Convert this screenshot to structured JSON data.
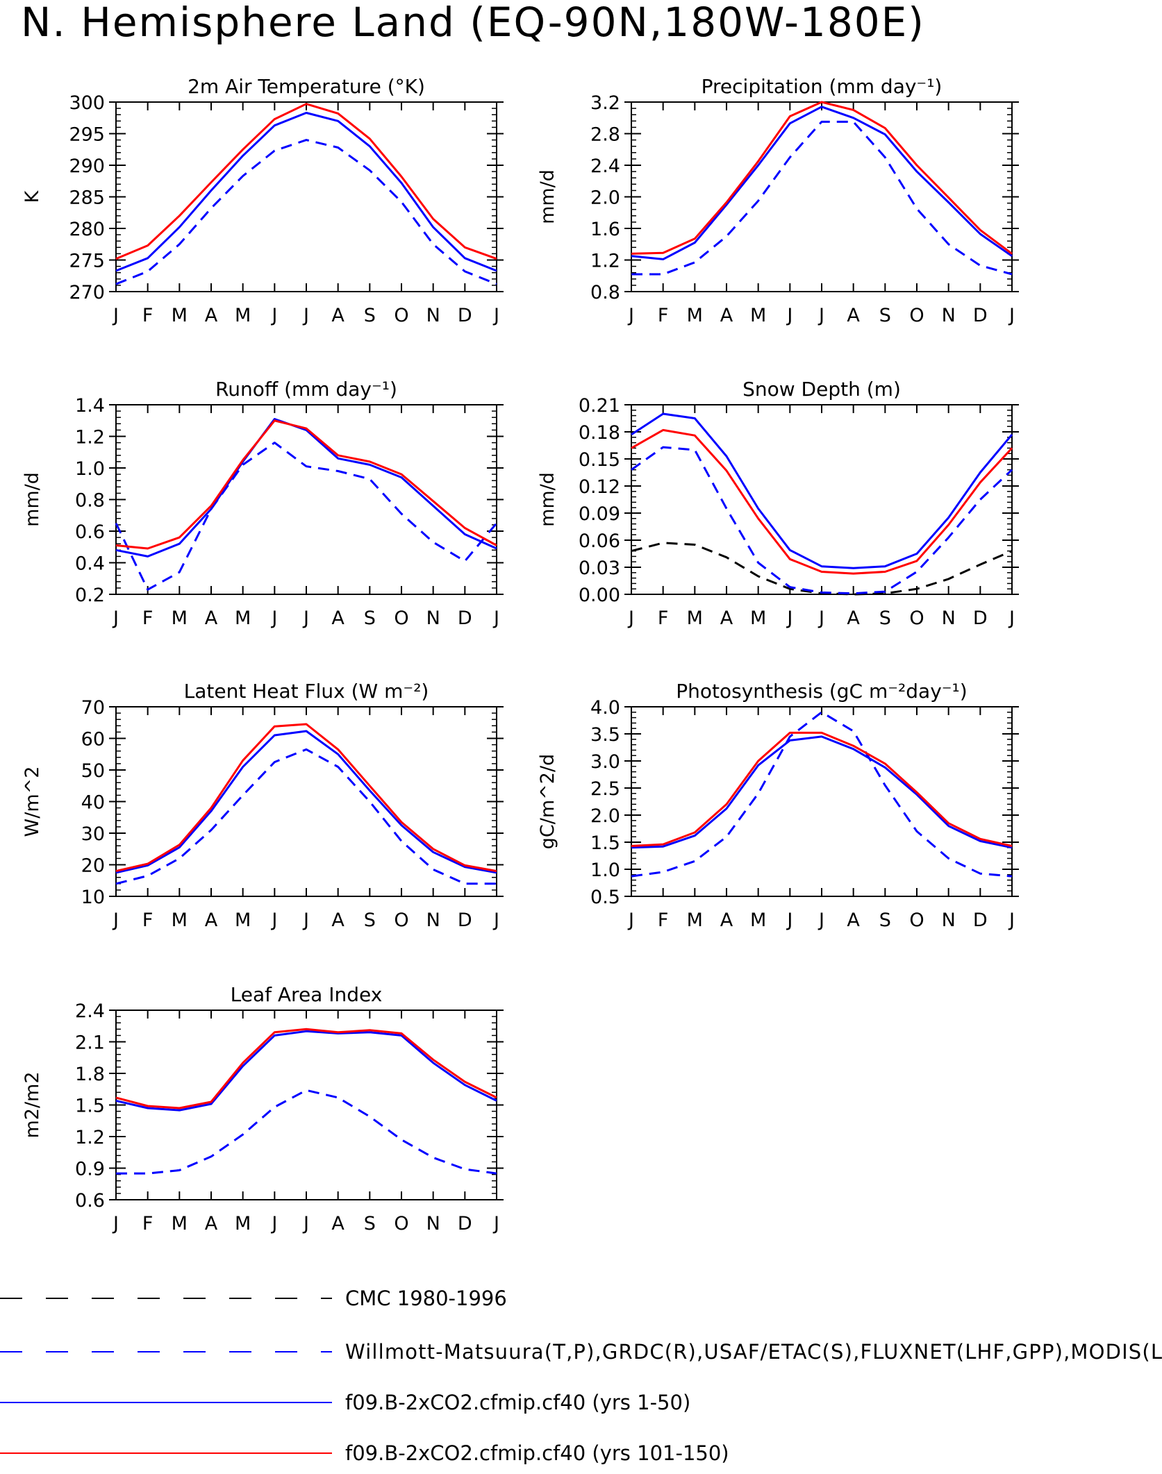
{
  "page_title": "N. Hemisphere Land (EQ-90N,180W-180E)",
  "colors": {
    "obs_snow": "#000000",
    "obs": "#0000ff",
    "model_1": "#0000ff",
    "model_2": "#ff0000"
  },
  "legend": [
    {
      "label": "CMC 1980-1996",
      "color": "#000000",
      "dashed": true
    },
    {
      "label": "Willmott-Matsuura(T,P),GRDC(R),USAF/ETAC(S),FLUXNET(LHF,GPP),MODIS(L",
      "color": "#0000ff",
      "dashed": true
    },
    {
      "label": "f09.B-2xCO2.cfmip.cf40 (yrs 1-50)",
      "color": "#0000ff",
      "dashed": false
    },
    {
      "label": "f09.B-2xCO2.cfmip.cf40 (yrs 101-150)",
      "color": "#ff0000",
      "dashed": false
    }
  ],
  "chart_data": [
    {
      "type": "line",
      "title": "2m Air Temperature (°K)",
      "ylabel": "K",
      "categories": [
        "J",
        "F",
        "M",
        "A",
        "M",
        "J",
        "J",
        "A",
        "S",
        "O",
        "N",
        "D",
        "J"
      ],
      "ylim": [
        270,
        300
      ],
      "yticks": [
        "270",
        "275",
        "280",
        "285",
        "290",
        "295",
        "300"
      ],
      "series": [
        {
          "color": "#0000ff",
          "dashed": true,
          "values": [
            271.2,
            273.2,
            277.5,
            283.2,
            288.3,
            292.3,
            294.0,
            292.8,
            289.2,
            284.2,
            277.5,
            273.2,
            271.2
          ]
        },
        {
          "color": "#0000ff",
          "dashed": false,
          "values": [
            273.3,
            275.3,
            280.2,
            286.0,
            291.5,
            296.3,
            298.3,
            297.0,
            293.0,
            287.2,
            280.2,
            275.3,
            273.3
          ]
        },
        {
          "color": "#ff0000",
          "dashed": false,
          "values": [
            275.2,
            277.3,
            282.0,
            287.3,
            292.5,
            297.3,
            299.7,
            298.2,
            294.2,
            288.2,
            281.5,
            277.0,
            275.2
          ]
        }
      ]
    },
    {
      "type": "line",
      "title": "Precipitation (mm day⁻¹)",
      "ylabel": "mm/d",
      "categories": [
        "J",
        "F",
        "M",
        "A",
        "M",
        "J",
        "J",
        "A",
        "S",
        "O",
        "N",
        "D",
        "J"
      ],
      "ylim": [
        0.8,
        3.2
      ],
      "yticks": [
        "0.8",
        "1.2",
        "1.6",
        "2.0",
        "2.4",
        "2.8",
        "3.2"
      ],
      "series": [
        {
          "color": "#0000ff",
          "dashed": true,
          "values": [
            1.02,
            1.02,
            1.17,
            1.5,
            1.95,
            2.5,
            2.95,
            2.95,
            2.5,
            1.85,
            1.4,
            1.13,
            1.02
          ]
        },
        {
          "color": "#0000ff",
          "dashed": false,
          "values": [
            1.25,
            1.21,
            1.42,
            1.9,
            2.4,
            2.93,
            3.14,
            3.0,
            2.79,
            2.32,
            1.93,
            1.53,
            1.25
          ]
        },
        {
          "color": "#ff0000",
          "dashed": false,
          "values": [
            1.28,
            1.29,
            1.47,
            1.93,
            2.45,
            3.02,
            3.2,
            3.1,
            2.87,
            2.4,
            1.99,
            1.58,
            1.28
          ]
        }
      ]
    },
    {
      "type": "line",
      "title": "Runoff (mm day⁻¹)",
      "ylabel": "mm/d",
      "categories": [
        "J",
        "F",
        "M",
        "A",
        "M",
        "J",
        "J",
        "A",
        "S",
        "O",
        "N",
        "D",
        "J"
      ],
      "ylim": [
        0.2,
        1.4
      ],
      "yticks": [
        "0.2",
        "0.4",
        "0.6",
        "0.8",
        "1.0",
        "1.2",
        "1.4"
      ],
      "series": [
        {
          "color": "#0000ff",
          "dashed": true,
          "values": [
            0.65,
            0.23,
            0.34,
            0.74,
            1.02,
            1.16,
            1.01,
            0.98,
            0.93,
            0.71,
            0.53,
            0.41,
            0.65
          ]
        },
        {
          "color": "#0000ff",
          "dashed": false,
          "values": [
            0.48,
            0.44,
            0.52,
            0.74,
            1.04,
            1.31,
            1.24,
            1.06,
            1.02,
            0.94,
            0.76,
            0.58,
            0.49
          ]
        },
        {
          "color": "#ff0000",
          "dashed": false,
          "values": [
            0.51,
            0.49,
            0.56,
            0.76,
            1.05,
            1.3,
            1.25,
            1.08,
            1.04,
            0.96,
            0.79,
            0.62,
            0.51
          ]
        }
      ]
    },
    {
      "type": "line",
      "title": "Snow Depth (m)",
      "ylabel": "mm/d",
      "categories": [
        "J",
        "F",
        "M",
        "A",
        "M",
        "J",
        "J",
        "A",
        "S",
        "O",
        "N",
        "D",
        "J"
      ],
      "ylim": [
        0,
        0.21
      ],
      "yticks": [
        "0.00",
        "0.03",
        "0.06",
        "0.09",
        "0.12",
        "0.15",
        "0.18",
        "0.21"
      ],
      "series": [
        {
          "color": "#000000",
          "dashed": true,
          "values": [
            0.048,
            0.057,
            0.055,
            0.041,
            0.02,
            0.006,
            0.001,
            0.0,
            0.001,
            0.006,
            0.017,
            0.033,
            0.048
          ]
        },
        {
          "color": "#0000ff",
          "dashed": true,
          "values": [
            0.138,
            0.163,
            0.16,
            0.095,
            0.035,
            0.008,
            0.002,
            0.001,
            0.003,
            0.025,
            0.063,
            0.105,
            0.138
          ]
        },
        {
          "color": "#0000ff",
          "dashed": false,
          "values": [
            0.177,
            0.2,
            0.195,
            0.153,
            0.095,
            0.049,
            0.031,
            0.029,
            0.031,
            0.045,
            0.085,
            0.135,
            0.177
          ]
        },
        {
          "color": "#ff0000",
          "dashed": false,
          "values": [
            0.162,
            0.182,
            0.176,
            0.137,
            0.084,
            0.039,
            0.025,
            0.023,
            0.025,
            0.037,
            0.077,
            0.124,
            0.162
          ]
        }
      ]
    },
    {
      "type": "line",
      "title": "Latent Heat Flux (W m⁻²)",
      "ylabel": "W/m^2",
      "categories": [
        "J",
        "F",
        "M",
        "A",
        "M",
        "J",
        "J",
        "A",
        "S",
        "O",
        "N",
        "D",
        "J"
      ],
      "ylim": [
        10,
        70
      ],
      "yticks": [
        "10",
        "20",
        "30",
        "40",
        "50",
        "60",
        "70"
      ],
      "series": [
        {
          "color": "#0000ff",
          "dashed": true,
          "values": [
            14,
            16.5,
            22,
            31,
            42,
            52.5,
            56.5,
            51,
            40,
            27.5,
            18.5,
            14,
            14
          ]
        },
        {
          "color": "#0000ff",
          "dashed": false,
          "values": [
            17.5,
            19.8,
            25.5,
            37,
            51,
            61,
            62.3,
            55,
            43.5,
            32.5,
            24,
            19.3,
            17.5
          ]
        },
        {
          "color": "#ff0000",
          "dashed": false,
          "values": [
            18,
            20.3,
            26.3,
            38,
            53,
            63.8,
            64.5,
            56.5,
            45,
            33.5,
            25,
            19.8,
            18
          ]
        }
      ]
    },
    {
      "type": "line",
      "title": "Photosynthesis (gC m⁻²day⁻¹)",
      "ylabel": "gC/m^2/d",
      "categories": [
        "J",
        "F",
        "M",
        "A",
        "M",
        "J",
        "J",
        "A",
        "S",
        "O",
        "N",
        "D",
        "J"
      ],
      "ylim": [
        0.5,
        4.0
      ],
      "yticks": [
        "0.5",
        "1.0",
        "1.5",
        "2.0",
        "2.5",
        "3.0",
        "3.5",
        "4.0"
      ],
      "series": [
        {
          "color": "#0000ff",
          "dashed": true,
          "values": [
            0.87,
            0.95,
            1.15,
            1.6,
            2.4,
            3.45,
            3.9,
            3.55,
            2.55,
            1.7,
            1.2,
            0.92,
            0.87
          ]
        },
        {
          "color": "#0000ff",
          "dashed": false,
          "values": [
            1.4,
            1.42,
            1.62,
            2.12,
            2.92,
            3.38,
            3.45,
            3.22,
            2.88,
            2.38,
            1.8,
            1.52,
            1.4
          ]
        },
        {
          "color": "#ff0000",
          "dashed": false,
          "values": [
            1.43,
            1.46,
            1.68,
            2.2,
            3.0,
            3.52,
            3.52,
            3.28,
            2.95,
            2.42,
            1.85,
            1.56,
            1.43
          ]
        }
      ]
    },
    {
      "type": "line",
      "title": "Leaf Area Index",
      "ylabel": "m2/m2",
      "categories": [
        "J",
        "F",
        "M",
        "A",
        "M",
        "J",
        "J",
        "A",
        "S",
        "O",
        "N",
        "D",
        "J"
      ],
      "ylim": [
        0.6,
        2.4
      ],
      "yticks": [
        "0.6",
        "0.9",
        "1.2",
        "1.5",
        "1.8",
        "2.1",
        "2.4"
      ],
      "series": [
        {
          "color": "#0000ff",
          "dashed": true,
          "values": [
            0.85,
            0.85,
            0.88,
            1.01,
            1.22,
            1.48,
            1.64,
            1.57,
            1.39,
            1.17,
            1.0,
            0.89,
            0.85
          ]
        },
        {
          "color": "#0000ff",
          "dashed": false,
          "values": [
            1.54,
            1.47,
            1.45,
            1.51,
            1.87,
            2.16,
            2.2,
            2.18,
            2.19,
            2.16,
            1.9,
            1.69,
            1.54
          ]
        },
        {
          "color": "#ff0000",
          "dashed": false,
          "values": [
            1.57,
            1.49,
            1.47,
            1.53,
            1.9,
            2.19,
            2.22,
            2.19,
            2.21,
            2.18,
            1.93,
            1.72,
            1.57
          ]
        }
      ]
    }
  ]
}
